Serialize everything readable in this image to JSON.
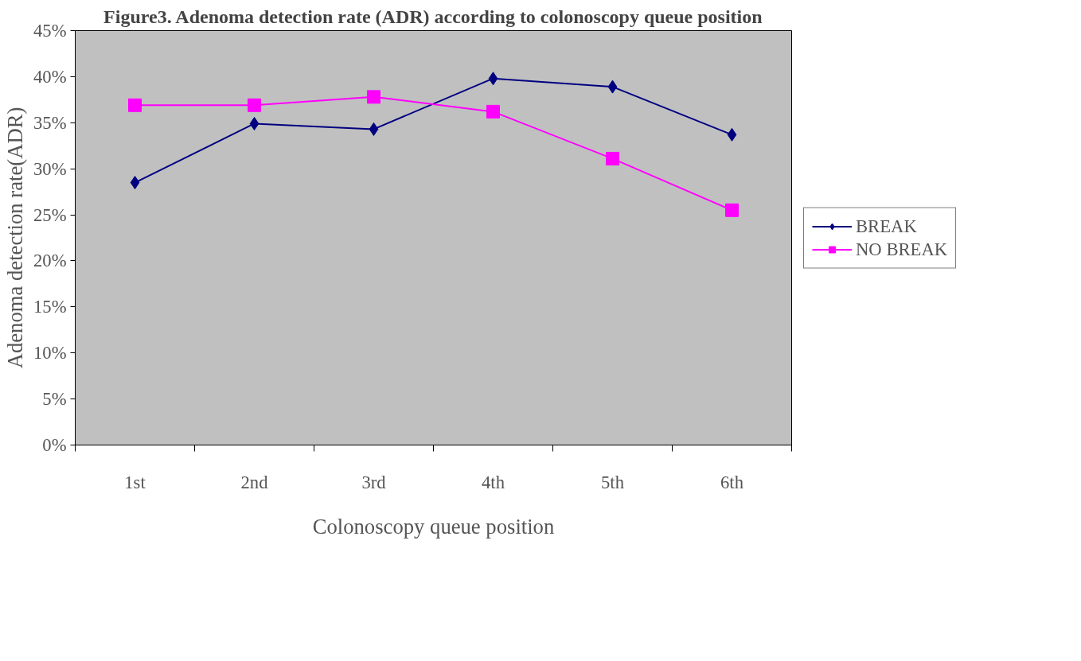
{
  "chart_data": {
    "type": "line",
    "title": "Figure3. Adenoma detection rate (ADR) according to colonoscopy queue position",
    "xlabel": "Colonoscopy queue position",
    "ylabel": "Adenoma detection rate(ADR)",
    "categories": [
      "1st",
      "2nd",
      "3rd",
      "4th",
      "5th",
      "6th"
    ],
    "series": [
      {
        "name": "BREAK",
        "color": "#000080",
        "marker": "diamond",
        "values": [
          28.5,
          34.9,
          34.3,
          39.8,
          38.9,
          33.7
        ]
      },
      {
        "name": "NO BREAK",
        "color": "#ff00ff",
        "marker": "square",
        "values": [
          36.9,
          36.9,
          37.8,
          36.2,
          31.1,
          25.5
        ]
      }
    ],
    "ylim": [
      0,
      45
    ],
    "yticks": [
      {
        "value": 0,
        "label": "0%"
      },
      {
        "value": 5,
        "label": "5%"
      },
      {
        "value": 10,
        "label": "10%"
      },
      {
        "value": 15,
        "label": "15%"
      },
      {
        "value": 20,
        "label": "20%"
      },
      {
        "value": 25,
        "label": "25%"
      },
      {
        "value": 30,
        "label": "30%"
      },
      {
        "value": 35,
        "label": "35%"
      },
      {
        "value": 40,
        "label": "40%"
      },
      {
        "value": 45,
        "label": "45%"
      }
    ],
    "grid": false,
    "legend": "right",
    "line_style": "solid"
  }
}
